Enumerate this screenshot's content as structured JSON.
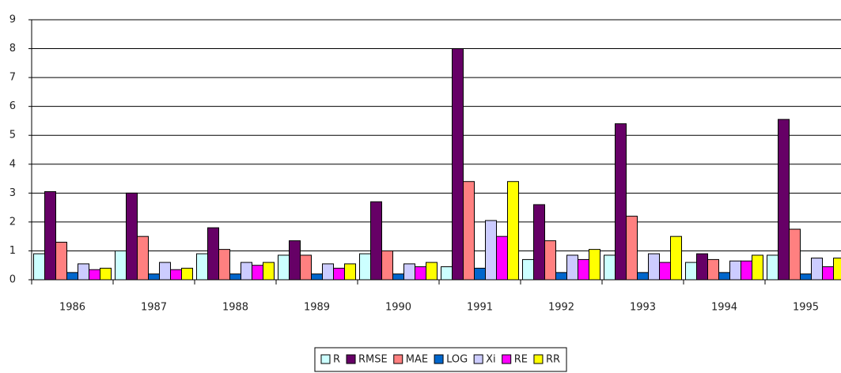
{
  "chart_data": {
    "type": "bar",
    "categories": [
      "1986",
      "1987",
      "1988",
      "1989",
      "1990",
      "1991",
      "1992",
      "1993",
      "1994",
      "1995"
    ],
    "series": [
      {
        "name": "R",
        "color": "#ccffff",
        "values": [
          0.9,
          1.0,
          0.9,
          0.85,
          0.9,
          0.45,
          0.7,
          0.85,
          0.6,
          0.85
        ]
      },
      {
        "name": "RMSE",
        "color": "#660066",
        "values": [
          3.05,
          3.0,
          1.8,
          1.35,
          2.7,
          8.0,
          2.6,
          5.4,
          0.9,
          5.55
        ]
      },
      {
        "name": "MAE",
        "color": "#ff8080",
        "values": [
          1.3,
          1.5,
          1.05,
          0.85,
          1.0,
          3.4,
          1.35,
          2.2,
          0.7,
          1.75
        ]
      },
      {
        "name": "LOG",
        "color": "#0066cc",
        "values": [
          0.25,
          0.2,
          0.2,
          0.2,
          0.2,
          0.4,
          0.25,
          0.25,
          0.25,
          0.2
        ]
      },
      {
        "name": "Xi",
        "color": "#ccccff",
        "values": [
          0.55,
          0.6,
          0.6,
          0.55,
          0.55,
          2.05,
          0.85,
          0.9,
          0.65,
          0.75
        ]
      },
      {
        "name": "RE",
        "color": "#ff00ff",
        "values": [
          0.35,
          0.35,
          0.5,
          0.4,
          0.45,
          1.5,
          0.7,
          0.6,
          0.65,
          0.45
        ]
      },
      {
        "name": "RR",
        "color": "#ffff00",
        "values": [
          0.4,
          0.4,
          0.6,
          0.55,
          0.6,
          3.4,
          1.05,
          1.5,
          0.85,
          0.75
        ]
      }
    ],
    "ylim": [
      0,
      9
    ],
    "yticks": [
      0,
      1,
      2,
      3,
      4,
      5,
      6,
      7,
      8,
      9
    ],
    "grid": true,
    "legend": "bottom"
  }
}
